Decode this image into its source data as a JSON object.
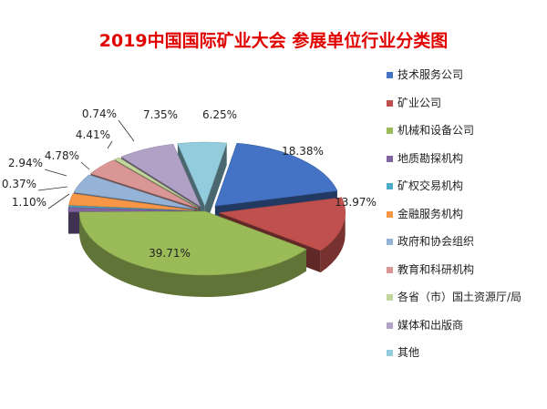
{
  "chart_data": {
    "type": "pie",
    "title": "2019中国国际矿业大会 参展单位行业分类图",
    "legend_position": "right",
    "series": [
      {
        "name": "技术服务公司",
        "value": 18.38,
        "label": "18.38%",
        "color": "#4472c4"
      },
      {
        "name": "矿业公司",
        "value": 13.97,
        "label": "13.97%",
        "color": "#c0504d"
      },
      {
        "name": "机械和设备公司",
        "value": 39.71,
        "label": "39.71%",
        "color": "#9bbb59"
      },
      {
        "name": "地质勘探机构",
        "value": 1.1,
        "label": "1.10%",
        "color": "#8064a2"
      },
      {
        "name": "矿权交易机构",
        "value": 0.37,
        "label": "0.37%",
        "color": "#4bacc6"
      },
      {
        "name": "金融服务机构",
        "value": 2.94,
        "label": "2.94%",
        "color": "#f79646"
      },
      {
        "name": "政府和协会组织",
        "value": 4.78,
        "label": "4.78%",
        "color": "#95b3d7"
      },
      {
        "name": "教育和科研机构",
        "value": 4.41,
        "label": "4.41%",
        "color": "#d99694"
      },
      {
        "name": "各省（市）国土资源厅/局",
        "value": 0.74,
        "label": "0.74%",
        "color": "#c3d69b"
      },
      {
        "name": "媒体和出版商",
        "value": 7.35,
        "label": "7.35%",
        "color": "#b2a1c7"
      },
      {
        "name": "其他",
        "value": 6.25,
        "label": "6.25%",
        "color": "#93cddd"
      }
    ]
  }
}
